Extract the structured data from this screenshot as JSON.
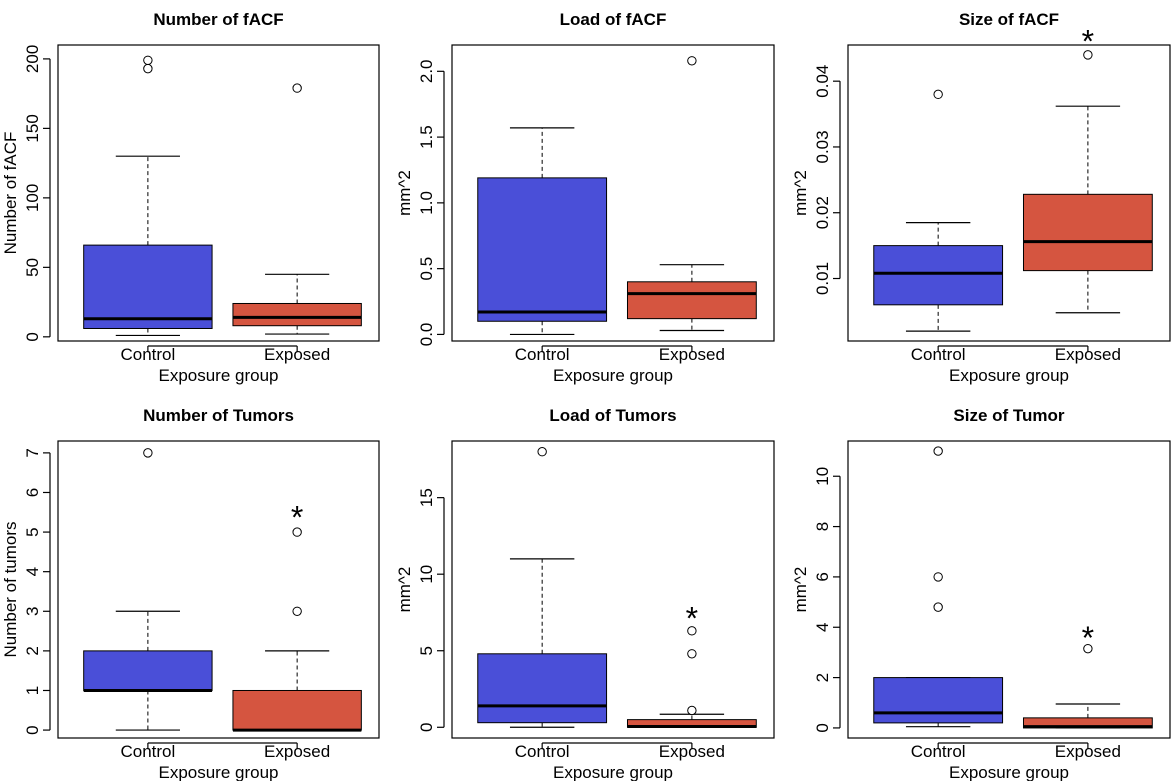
{
  "colors": {
    "control": "#4a4fd8",
    "exposed": "#d55540",
    "median": "#000000",
    "outline": "#000000"
  },
  "chart_data": [
    {
      "type": "box",
      "title": "Number of fACF",
      "ylabel": "Number of fACF",
      "xlabel": "Exposure group",
      "categories": [
        "Control",
        "Exposed"
      ],
      "ylim": [
        -3,
        210
      ],
      "yticks": [
        0,
        50,
        100,
        150,
        200
      ],
      "ytick_labels": [
        "0",
        "50",
        "100",
        "150",
        "200"
      ],
      "boxes": [
        {
          "whisker_low": 1,
          "q1": 6,
          "median": 13,
          "q3": 66,
          "whisker_high": 130,
          "outliers": [
            193,
            199
          ]
        },
        {
          "whisker_low": 2,
          "q1": 8,
          "median": 14,
          "q3": 24,
          "whisker_high": 45,
          "outliers": [
            179
          ]
        }
      ],
      "significance": []
    },
    {
      "type": "box",
      "title": "Load of fACF",
      "ylabel": "mm^2",
      "xlabel": "Exposure group",
      "categories": [
        "Control",
        "Exposed"
      ],
      "ylim": [
        -0.05,
        2.2
      ],
      "yticks": [
        0.0,
        0.5,
        1.0,
        1.5,
        2.0
      ],
      "ytick_labels": [
        "0.0",
        "0.5",
        "1.0",
        "1.5",
        "2.0"
      ],
      "boxes": [
        {
          "whisker_low": 0.0,
          "q1": 0.1,
          "median": 0.17,
          "q3": 1.19,
          "whisker_high": 1.57,
          "outliers": []
        },
        {
          "whisker_low": 0.03,
          "q1": 0.12,
          "median": 0.31,
          "q3": 0.4,
          "whisker_high": 0.53,
          "outliers": [
            2.08
          ]
        }
      ],
      "significance": []
    },
    {
      "type": "box",
      "title": "Size of fACF",
      "ylabel": "mm^2",
      "xlabel": "Exposure group",
      "categories": [
        "Control",
        "Exposed"
      ],
      "ylim": [
        0.0005,
        0.0455
      ],
      "yticks": [
        0.01,
        0.02,
        0.03,
        0.04
      ],
      "ytick_labels": [
        "0.01",
        "0.02",
        "0.03",
        "0.04"
      ],
      "boxes": [
        {
          "whisker_low": 0.002,
          "q1": 0.006,
          "median": 0.0108,
          "q3": 0.015,
          "whisker_high": 0.0185,
          "outliers": [
            0.038
          ]
        },
        {
          "whisker_low": 0.0048,
          "q1": 0.0112,
          "median": 0.0156,
          "q3": 0.0228,
          "whisker_high": 0.0362,
          "outliers": [
            0.044
          ]
        }
      ],
      "significance": [
        {
          "category": "Exposed",
          "label": "*",
          "y": 0.0465
        }
      ]
    },
    {
      "type": "box",
      "title": "Number of Tumors",
      "ylabel": "Number of tumors",
      "xlabel": "Exposure group",
      "categories": [
        "Control",
        "Exposed"
      ],
      "ylim": [
        -0.2,
        7.3
      ],
      "yticks": [
        0,
        1,
        2,
        3,
        4,
        5,
        6,
        7
      ],
      "ytick_labels": [
        "0",
        "1",
        "2",
        "3",
        "4",
        "5",
        "6",
        "7"
      ],
      "boxes": [
        {
          "whisker_low": 0,
          "q1": 1,
          "median": 1,
          "q3": 2,
          "whisker_high": 3,
          "outliers": [
            7
          ]
        },
        {
          "whisker_low": 0,
          "q1": 0,
          "median": 0,
          "q3": 1,
          "whisker_high": 2,
          "outliers": [
            3,
            5
          ]
        }
      ],
      "significance": [
        {
          "category": "Exposed",
          "label": "*",
          "y": 5.45
        }
      ]
    },
    {
      "type": "box",
      "title": "Load of Tumors",
      "ylabel": "mm^2",
      "xlabel": "Exposure group",
      "categories": [
        "Control",
        "Exposed"
      ],
      "ylim": [
        -0.7,
        18.7
      ],
      "yticks": [
        0,
        5,
        10,
        15
      ],
      "ytick_labels": [
        "0",
        "5",
        "10",
        "15"
      ],
      "boxes": [
        {
          "whisker_low": 0,
          "q1": 0.3,
          "median": 1.4,
          "q3": 4.8,
          "whisker_high": 11,
          "outliers": [
            18
          ]
        },
        {
          "whisker_low": 0,
          "q1": 0,
          "median": 0.05,
          "q3": 0.5,
          "whisker_high": 0.85,
          "outliers": [
            1.1,
            4.8,
            6.3
          ]
        }
      ],
      "significance": [
        {
          "category": "Exposed",
          "label": "*",
          "y": 7.3
        }
      ]
    },
    {
      "type": "box",
      "title": "Size of Tumor",
      "ylabel": "mm^2",
      "xlabel": "Exposure group",
      "categories": [
        "Control",
        "Exposed"
      ],
      "ylim": [
        -0.4,
        11.4
      ],
      "yticks": [
        0,
        2,
        4,
        6,
        8,
        10
      ],
      "ytick_labels": [
        "0",
        "2",
        "4",
        "6",
        "8",
        "10"
      ],
      "boxes": [
        {
          "whisker_low": 0.05,
          "q1": 0.2,
          "median": 0.6,
          "q3": 2.0,
          "whisker_high": 2.0,
          "outliers": [
            4.8,
            6.0,
            11.0
          ]
        },
        {
          "whisker_low": 0,
          "q1": 0,
          "median": 0.05,
          "q3": 0.4,
          "whisker_high": 0.95,
          "outliers": [
            3.15
          ]
        }
      ],
      "significance": [
        {
          "category": "Exposed",
          "label": "*",
          "y": 3.7
        }
      ]
    }
  ]
}
